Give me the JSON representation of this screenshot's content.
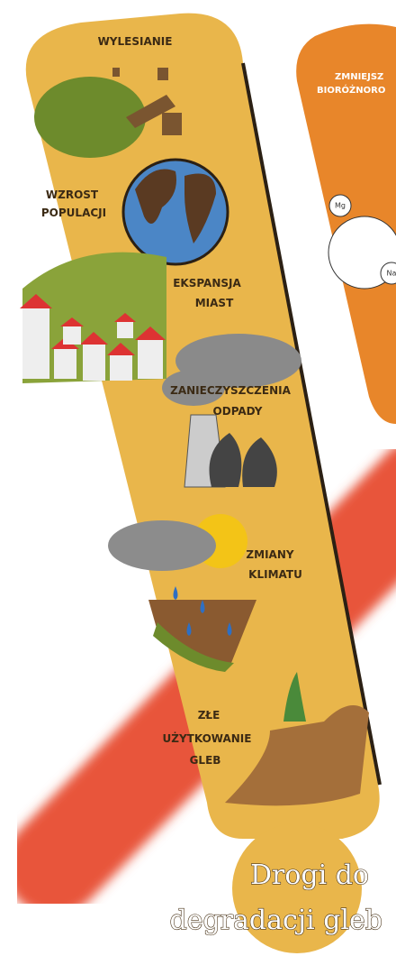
{
  "labels": [
    {
      "lines": [
        "WYLESIANIE"
      ]
    },
    {
      "lines": [
        "WZROST",
        "POPULACJI"
      ]
    },
    {
      "lines": [
        "EKSPANSJA",
        "MIAST"
      ]
    },
    {
      "lines": [
        "ZANIECZYSZCZENIA",
        "ODPADY"
      ]
    },
    {
      "lines": [
        "ZMIANY",
        "KLIMATU"
      ]
    },
    {
      "lines": [
        "ZŁE",
        "UŻYTKOWANIE",
        "GLEB"
      ]
    }
  ],
  "side": {
    "lines": [
      "ZMNIEJSZ",
      "BIORÓŻNORO"
    ]
  },
  "elements": [
    "Mg",
    "Na"
  ],
  "title": {
    "lines": [
      "Drogi do",
      "degradacji gleb"
    ]
  }
}
